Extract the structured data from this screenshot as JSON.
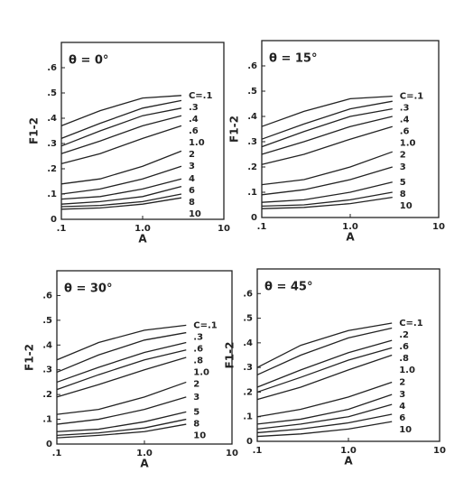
{
  "chart_data": [
    {
      "type": "line",
      "title": "θ = 0°",
      "x_label": "A",
      "y_label": "F1-2",
      "log_x": true,
      "xlim": [
        0.1,
        10
      ],
      "ylim": [
        0,
        0.7
      ],
      "xticks": [
        {
          "value": 0.1,
          "label": ".1"
        },
        {
          "value": 1,
          "label": "1.0"
        },
        10
      ],
      "yticks": [
        0,
        {
          "value": 0.1,
          "label": ".1"
        },
        {
          "value": 0.2,
          "label": ".2"
        },
        {
          "value": 0.3,
          "label": ".3"
        },
        {
          "value": 0.4,
          "label": ".4"
        },
        {
          "value": 0.5,
          "label": ".5"
        },
        {
          "value": 0.6,
          "label": ".6"
        }
      ],
      "x": [
        0.1,
        0.3,
        1,
        3
      ],
      "series": [
        {
          "name": "C=.1",
          "color": "#222",
          "values": [
            0.37,
            0.43,
            0.48,
            0.49
          ]
        },
        {
          "name": ".3",
          "color": "#222",
          "values": [
            0.32,
            0.38,
            0.44,
            0.47
          ]
        },
        {
          "name": ".4",
          "color": "#222",
          "values": [
            0.29,
            0.35,
            0.41,
            0.44
          ]
        },
        {
          "name": ".6",
          "color": "#222",
          "values": [
            0.26,
            0.31,
            0.37,
            0.41
          ]
        },
        {
          "name": "1.0",
          "color": "#222",
          "values": [
            0.22,
            0.26,
            0.32,
            0.37
          ]
        },
        {
          "name": "2",
          "color": "#222",
          "values": [
            0.14,
            0.16,
            0.21,
            0.27
          ]
        },
        {
          "name": "3",
          "color": "#222",
          "values": [
            0.1,
            0.12,
            0.16,
            0.21
          ]
        },
        {
          "name": "4",
          "color": "#222",
          "values": [
            0.08,
            0.09,
            0.12,
            0.16
          ]
        },
        {
          "name": "6",
          "color": "#222",
          "values": [
            0.06,
            0.07,
            0.09,
            0.13
          ]
        },
        {
          "name": "8",
          "color": "#222",
          "values": [
            0.05,
            0.055,
            0.07,
            0.1
          ]
        },
        {
          "name": "10",
          "color": "#222",
          "values": [
            0.04,
            0.045,
            0.06,
            0.085
          ]
        }
      ]
    },
    {
      "type": "line",
      "title": "θ = 15°",
      "x_label": "A",
      "y_label": "F1-2",
      "log_x": true,
      "xlim": [
        0.1,
        10
      ],
      "ylim": [
        0,
        0.7
      ],
      "xticks": [
        {
          "value": 0.1,
          "label": ".1"
        },
        {
          "value": 1,
          "label": "1.0"
        },
        10
      ],
      "yticks": [
        0,
        {
          "value": 0.1,
          "label": ".1"
        },
        {
          "value": 0.2,
          "label": ".2"
        },
        {
          "value": 0.3,
          "label": ".3"
        },
        {
          "value": 0.4,
          "label": ".4"
        },
        {
          "value": 0.5,
          "label": ".5"
        },
        {
          "value": 0.6,
          "label": ".6"
        }
      ],
      "x": [
        0.1,
        0.3,
        1,
        3
      ],
      "series": [
        {
          "name": "C=.1",
          "color": "#222",
          "values": [
            0.36,
            0.42,
            0.47,
            0.48
          ]
        },
        {
          "name": ".3",
          "color": "#222",
          "values": [
            0.31,
            0.37,
            0.43,
            0.46
          ]
        },
        {
          "name": ".4",
          "color": "#222",
          "values": [
            0.28,
            0.34,
            0.4,
            0.43
          ]
        },
        {
          "name": ".6",
          "color": "#222",
          "values": [
            0.25,
            0.3,
            0.36,
            0.4
          ]
        },
        {
          "name": "1.0",
          "color": "#222",
          "values": [
            0.21,
            0.25,
            0.31,
            0.36
          ]
        },
        {
          "name": "2",
          "color": "#222",
          "values": [
            0.13,
            0.15,
            0.2,
            0.26
          ]
        },
        {
          "name": "3",
          "color": "#222",
          "values": [
            0.09,
            0.11,
            0.15,
            0.2
          ]
        },
        {
          "name": "5",
          "color": "#222",
          "values": [
            0.06,
            0.07,
            0.1,
            0.14
          ]
        },
        {
          "name": "8",
          "color": "#222",
          "values": [
            0.045,
            0.05,
            0.07,
            0.1
          ]
        },
        {
          "name": "10",
          "color": "#222",
          "values": [
            0.035,
            0.04,
            0.055,
            0.08
          ]
        }
      ]
    },
    {
      "type": "line",
      "title": "θ = 30°",
      "x_label": "A",
      "y_label": "F1-2",
      "log_x": true,
      "xlim": [
        0.1,
        10
      ],
      "ylim": [
        0,
        0.7
      ],
      "xticks": [
        {
          "value": 0.1,
          "label": ".1"
        },
        {
          "value": 1,
          "label": "1.0"
        },
        10
      ],
      "yticks": [
        0,
        {
          "value": 0.1,
          "label": ".1"
        },
        {
          "value": 0.2,
          "label": ".2"
        },
        {
          "value": 0.3,
          "label": ".3"
        },
        {
          "value": 0.4,
          "label": ".4"
        },
        {
          "value": 0.5,
          "label": ".5"
        },
        {
          "value": 0.6,
          "label": ".6"
        }
      ],
      "x": [
        0.1,
        0.3,
        1,
        3
      ],
      "series": [
        {
          "name": "C=.1",
          "color": "#222",
          "values": [
            0.34,
            0.41,
            0.46,
            0.48
          ]
        },
        {
          "name": ".3",
          "color": "#222",
          "values": [
            0.29,
            0.36,
            0.42,
            0.45
          ]
        },
        {
          "name": ".6",
          "color": "#222",
          "values": [
            0.25,
            0.31,
            0.37,
            0.41
          ]
        },
        {
          "name": ".8",
          "color": "#222",
          "values": [
            0.22,
            0.28,
            0.34,
            0.38
          ]
        },
        {
          "name": "1.0",
          "color": "#222",
          "values": [
            0.19,
            0.24,
            0.3,
            0.35
          ]
        },
        {
          "name": "2",
          "color": "#222",
          "values": [
            0.12,
            0.14,
            0.19,
            0.25
          ]
        },
        {
          "name": "3",
          "color": "#222",
          "values": [
            0.08,
            0.1,
            0.14,
            0.19
          ]
        },
        {
          "name": "5",
          "color": "#222",
          "values": [
            0.05,
            0.06,
            0.09,
            0.13
          ]
        },
        {
          "name": "8",
          "color": "#222",
          "values": [
            0.035,
            0.045,
            0.065,
            0.1
          ]
        },
        {
          "name": "10",
          "color": "#222",
          "values": [
            0.025,
            0.035,
            0.05,
            0.08
          ]
        }
      ]
    },
    {
      "type": "line",
      "title": "θ = 45°",
      "x_label": "A",
      "y_label": "F1-2",
      "log_x": true,
      "xlim": [
        0.1,
        10
      ],
      "ylim": [
        0,
        0.7
      ],
      "xticks": [
        {
          "value": 0.1,
          "label": ".1"
        },
        {
          "value": 1,
          "label": "1.0"
        },
        10
      ],
      "yticks": [
        0,
        {
          "value": 0.1,
          "label": ".1"
        },
        {
          "value": 0.2,
          "label": ".2"
        },
        {
          "value": 0.3,
          "label": ".3"
        },
        {
          "value": 0.4,
          "label": ".4"
        },
        {
          "value": 0.5,
          "label": ".5"
        },
        {
          "value": 0.6,
          "label": ".6"
        }
      ],
      "x": [
        0.1,
        0.3,
        1,
        3
      ],
      "series": [
        {
          "name": "C=.1",
          "color": "#222",
          "values": [
            0.3,
            0.39,
            0.45,
            0.48
          ]
        },
        {
          "name": ".2",
          "color": "#222",
          "values": [
            0.27,
            0.35,
            0.42,
            0.46
          ]
        },
        {
          "name": ".6",
          "color": "#222",
          "values": [
            0.22,
            0.29,
            0.36,
            0.41
          ]
        },
        {
          "name": ".8",
          "color": "#222",
          "values": [
            0.2,
            0.26,
            0.33,
            0.38
          ]
        },
        {
          "name": "1.0",
          "color": "#222",
          "values": [
            0.17,
            0.22,
            0.29,
            0.35
          ]
        },
        {
          "name": "2",
          "color": "#222",
          "values": [
            0.1,
            0.13,
            0.18,
            0.24
          ]
        },
        {
          "name": "3",
          "color": "#222",
          "values": [
            0.07,
            0.09,
            0.13,
            0.19
          ]
        },
        {
          "name": "4",
          "color": "#222",
          "values": [
            0.05,
            0.07,
            0.1,
            0.15
          ]
        },
        {
          "name": "6",
          "color": "#222",
          "values": [
            0.035,
            0.05,
            0.075,
            0.11
          ]
        },
        {
          "name": "10",
          "color": "#222",
          "values": [
            0.02,
            0.03,
            0.05,
            0.08
          ]
        }
      ]
    }
  ]
}
